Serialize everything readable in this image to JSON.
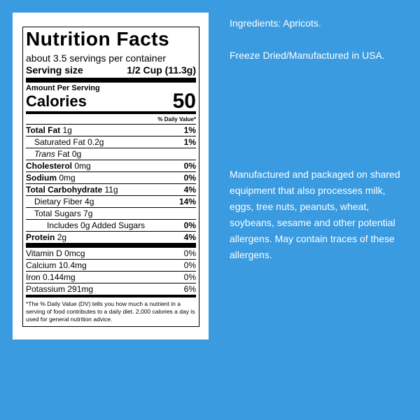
{
  "label": {
    "title": "Nutrition Facts",
    "servings": "about 3.5 servings per container",
    "serving_size_label": "Serving size",
    "serving_size_value": "1/2 Cup (11.3g)",
    "amount_per_serving": "Amount Per Serving",
    "calories_label": "Calories",
    "calories_value": "50",
    "dv_header": "% Daily Value*",
    "nutrients": [
      {
        "name": "Total Fat",
        "amount": "1g",
        "dv": "1%"
      },
      {
        "name": "Saturated Fat",
        "amount": "0.2g",
        "dv": "1%"
      },
      {
        "name_italic": "Trans",
        "name": "Fat",
        "amount": "0g"
      },
      {
        "name": "Cholesterol",
        "amount": "0mg",
        "dv": "0%"
      },
      {
        "name": "Sodium",
        "amount": "0mg",
        "dv": "0%"
      },
      {
        "name": "Total Carbohydrate",
        "amount": "11g",
        "dv": "4%"
      },
      {
        "name": "Dietary Fiber",
        "amount": "4g",
        "dv": "14%"
      },
      {
        "name": "Total Sugars",
        "amount": "7g"
      },
      {
        "name": "Includes 0g Added Sugars",
        "dv": "0%"
      },
      {
        "name": "Protein",
        "amount": "2g",
        "dv": "4%"
      }
    ],
    "vitamins": [
      {
        "name": "Vitamin D",
        "amount": "0mcg",
        "dv": "0%"
      },
      {
        "name": "Calcium",
        "amount": "10.4mg",
        "dv": "0%"
      },
      {
        "name": "Iron",
        "amount": "0.144mg",
        "dv": "0%"
      },
      {
        "name": "Potassium",
        "amount": "291mg",
        "dv": "6%"
      }
    ],
    "footnote": "*The % Daily Value (DV) tells you how much a nutrient in a serving of food contributes to a daily diet. 2,000 calories a day is used for general nutrition advice."
  },
  "ingredients": "Ingredients: Apricots.",
  "origin": "Freeze Dried/Manufactured in USA.",
  "allergen_note": "Manufactured and packaged on shared equipment that also processes milk, eggs, tree nuts, peanuts, wheat, soybeans, sesame and other potential allergens. May contain traces of these allergens."
}
